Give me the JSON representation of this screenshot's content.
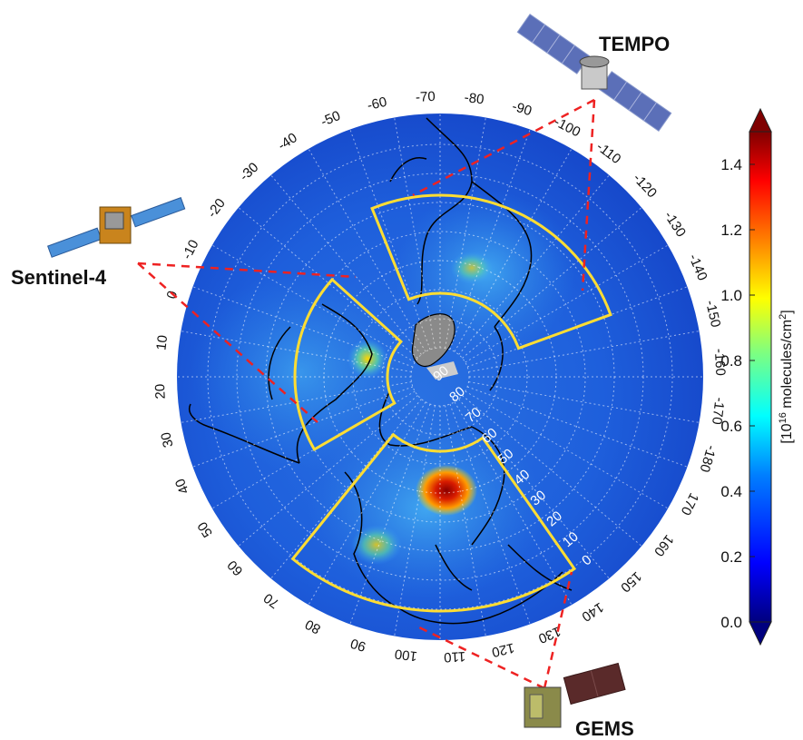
{
  "satellites": {
    "tempo": "TEMPO",
    "sentinel4": "Sentinel-4",
    "gems": "GEMS"
  },
  "longitude_labels": [
    "-70",
    "-80",
    "-90",
    "-100",
    "-110",
    "-120",
    "-130",
    "-140",
    "-150",
    "-160",
    "-170",
    "-180",
    "170",
    "160",
    "150",
    "140",
    "130",
    "120",
    "110",
    "100",
    "90",
    "80",
    "70",
    "60",
    "50",
    "40",
    "30",
    "20",
    "10",
    "0",
    "-10",
    "-20",
    "-30",
    "-40",
    "-50",
    "-60"
  ],
  "latitude_labels": [
    "0",
    "10",
    "20",
    "30",
    "40",
    "50",
    "60",
    "70",
    "80",
    "90"
  ],
  "colorbar": {
    "ticks": [
      "0.0",
      "0.2",
      "0.4",
      "0.6",
      "0.8",
      "1.0",
      "1.2",
      "1.4"
    ],
    "unit_prefix": "[10",
    "unit_exp": "16",
    "unit_mid": " molecules/cm",
    "unit_sq": "2",
    "unit_suffix": "]",
    "range": [
      0.0,
      1.5
    ],
    "colormap": [
      "#00007f",
      "#0000ff",
      "#007fff",
      "#00ffff",
      "#7fff7f",
      "#ffff00",
      "#ff7f00",
      "#ff0000",
      "#7f0000"
    ]
  },
  "colors": {
    "ocean": "#1a52d6",
    "field_land": "#2f86e6",
    "field_high": "#c81e00",
    "coast": "#000000",
    "sector_outline": "#ffdd33",
    "fov_line": "#ee2222",
    "grid": "#ffffff"
  }
}
